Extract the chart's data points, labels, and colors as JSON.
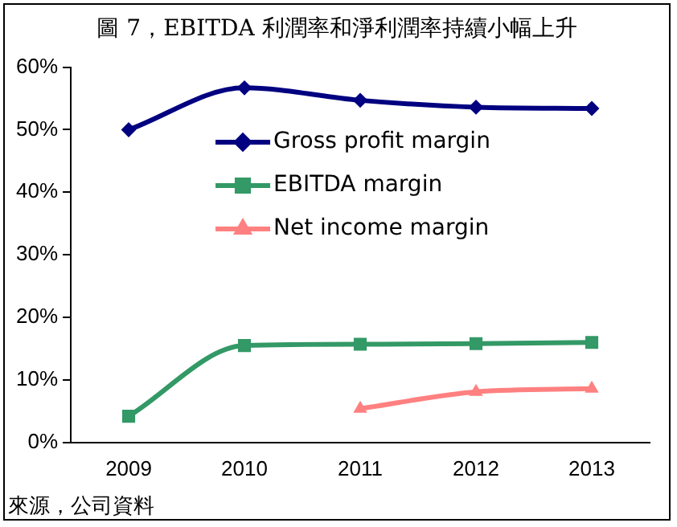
{
  "chart_data": {
    "type": "line",
    "title": "圖 7，EBITDA 利潤率和淨利潤率持續小幅上升",
    "annotations": [
      "來源，公司資料"
    ],
    "categories": [
      "2009",
      "2010",
      "2011",
      "2012",
      "2013"
    ],
    "series": [
      {
        "name": "Gross profit margin",
        "color": "#000080",
        "marker": "diamond",
        "values": [
          50,
          56.7,
          54.7,
          53.6,
          53.4
        ]
      },
      {
        "name": "EBITDA margin",
        "color": "#339966",
        "marker": "square",
        "values": [
          4.2,
          15.5,
          15.7,
          15.8,
          16
        ]
      },
      {
        "name": "Net income margin",
        "color": "#ff8080",
        "marker": "triangle",
        "values": [
          null,
          null,
          5.4,
          8.1,
          8.6
        ]
      }
    ],
    "ylim": [
      0,
      60
    ],
    "yticks": [
      {
        "value": 0,
        "label": "0%"
      },
      {
        "value": 10,
        "label": "10%"
      },
      {
        "value": 20,
        "label": "20%"
      },
      {
        "value": 30,
        "label": "30%"
      },
      {
        "value": 40,
        "label": "40%"
      },
      {
        "value": 50,
        "label": "50%"
      },
      {
        "value": 60,
        "label": "60%"
      }
    ],
    "grid": false,
    "legend": "center"
  }
}
